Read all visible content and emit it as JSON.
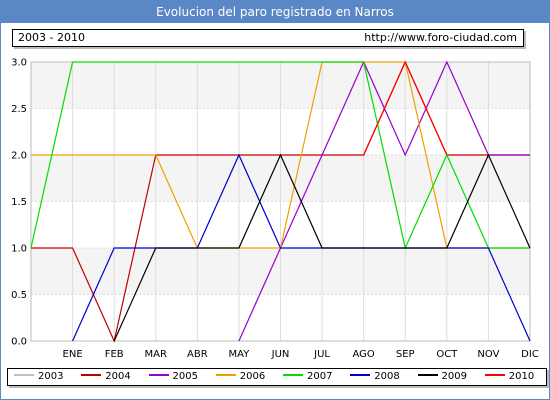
{
  "header": {
    "title": "Evolucion del paro registrado en Narros",
    "period": "2003 - 2010",
    "site": "http://www.foro-ciudad.com"
  },
  "chart_data": {
    "type": "line",
    "title": "Evolucion del paro registrado en Narros",
    "xlabel": "",
    "ylabel": "",
    "ylim": [
      0,
      3
    ],
    "yticks": [
      "0.0",
      "0.5",
      "1.0",
      "1.5",
      "2.0",
      "2.5",
      "3.0"
    ],
    "categories": [
      "ENE",
      "FEB",
      "MAR",
      "ABR",
      "MAY",
      "JUN",
      "JUL",
      "AGO",
      "SEP",
      "OCT",
      "NOV",
      "DIC"
    ],
    "grid": true,
    "legend_position": "bottom",
    "series": [
      {
        "name": "2003",
        "color": "#c0c0c0",
        "values": [
          null,
          null,
          null,
          null,
          null,
          null,
          null,
          null,
          null,
          null,
          null,
          null
        ],
        "start": null
      },
      {
        "name": "2004",
        "color": "#c00000",
        "values": [
          1,
          0,
          2,
          2,
          2,
          2,
          2,
          2,
          3,
          2,
          2,
          2
        ],
        "start": 1
      },
      {
        "name": "2005",
        "color": "#9900cc",
        "values": [
          null,
          null,
          null,
          null,
          0,
          1,
          2,
          3,
          2,
          3,
          2,
          2
        ],
        "start": null
      },
      {
        "name": "2006",
        "color": "#f0a000",
        "values": [
          2,
          2,
          2,
          1,
          1,
          1,
          3,
          3,
          3,
          1,
          1,
          1
        ],
        "start": 2
      },
      {
        "name": "2007",
        "color": "#00dd00",
        "values": [
          3,
          3,
          3,
          3,
          3,
          3,
          3,
          3,
          1,
          2,
          1,
          1
        ],
        "start": 1
      },
      {
        "name": "2008",
        "color": "#0000cc",
        "values": [
          0,
          1,
          1,
          1,
          2,
          1,
          1,
          1,
          1,
          1,
          1,
          0
        ],
        "start": null
      },
      {
        "name": "2009",
        "color": "#000000",
        "values": [
          null,
          0,
          1,
          1,
          1,
          2,
          1,
          1,
          1,
          1,
          2,
          1
        ],
        "start": null
      },
      {
        "name": "2010",
        "color": "#ff0000",
        "values": [
          null,
          null,
          null,
          null,
          null,
          null,
          null,
          2,
          3,
          2,
          null,
          null
        ],
        "start": null
      }
    ]
  }
}
